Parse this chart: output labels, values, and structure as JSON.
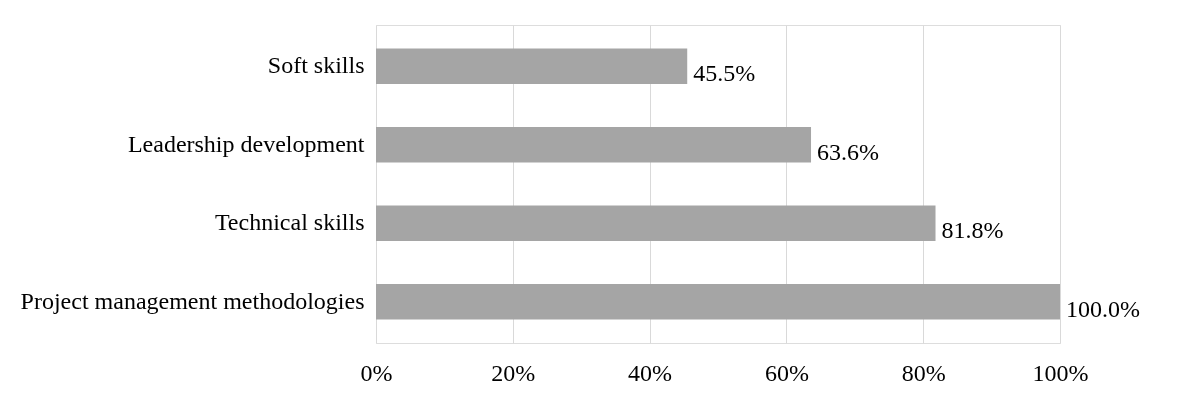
{
  "chart_data": {
    "type": "bar",
    "orientation": "horizontal",
    "categories": [
      "Soft skills",
      "Leadership development",
      "Technical skills",
      "Project management methodologies"
    ],
    "series": [
      {
        "color": "#a5a5a5",
        "values": [
          45.5,
          63.6,
          81.8,
          100.0
        ]
      }
    ],
    "value_labels": [
      "45.5%",
      "63.6%",
      "81.8%",
      "100.0%"
    ],
    "xlim": [
      0,
      100
    ],
    "xticks": [
      {
        "value": 0,
        "label": "0%"
      },
      {
        "value": 20,
        "label": "20%"
      },
      {
        "value": 40,
        "label": "40%"
      },
      {
        "value": 60,
        "label": "60%"
      },
      {
        "value": 80,
        "label": "80%"
      },
      {
        "value": 100,
        "label": "100%"
      }
    ],
    "grid": "x"
  }
}
